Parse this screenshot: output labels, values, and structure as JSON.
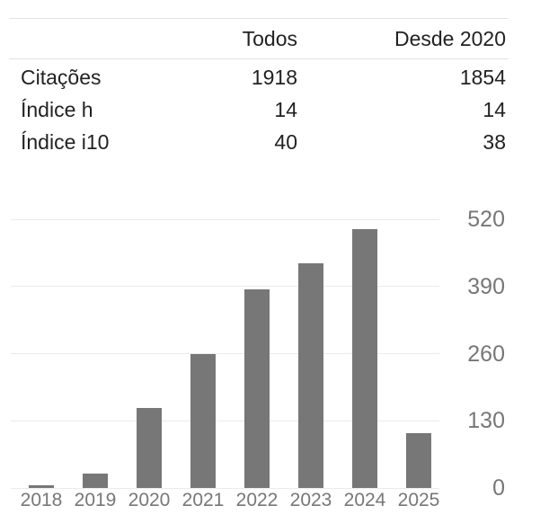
{
  "table": {
    "headers": {
      "all": "Todos",
      "since": "Desde 2020"
    },
    "rows": [
      {
        "label": "Citações",
        "all": "1918",
        "since": "1854"
      },
      {
        "label": "Índice h",
        "all": "14",
        "since": "14"
      },
      {
        "label": "Índice i10",
        "all": "40",
        "since": "38"
      }
    ]
  },
  "chart_data": {
    "type": "bar",
    "title": "",
    "xlabel": "",
    "ylabel": "",
    "categories": [
      "2018",
      "2019",
      "2020",
      "2021",
      "2022",
      "2023",
      "2024",
      "2025"
    ],
    "values": [
      6,
      27,
      155,
      259,
      385,
      435,
      502,
      107
    ],
    "yticks": [
      0,
      130,
      260,
      390,
      520
    ],
    "ylim": [
      0,
      520
    ],
    "y_axis_side": "right",
    "grid": true,
    "legend_position": "none",
    "bar_color": "#777777",
    "tick_label_color": "#777777",
    "gridline_color": "#ebebeb"
  },
  "colors": {
    "text": "#222222",
    "table_border": "#e3e3e3",
    "background": "#ffffff"
  }
}
